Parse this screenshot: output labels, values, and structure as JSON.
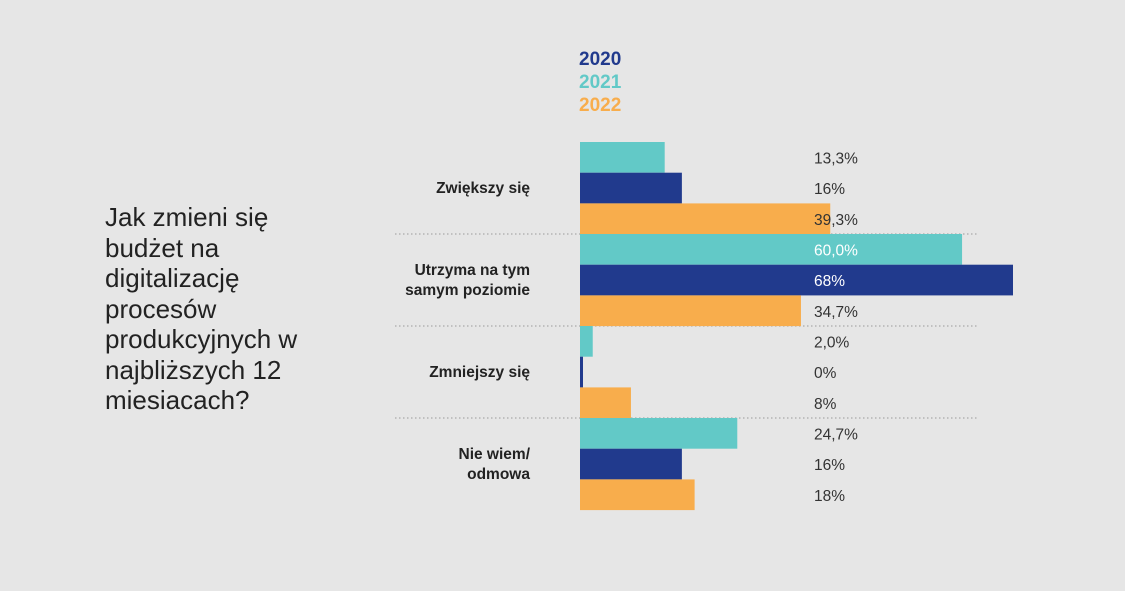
{
  "chart_data": {
    "type": "bar",
    "orientation": "horizontal",
    "title": "Jak zmieni się budżet na digitalizację procesów produkcyjnych w najbliższych 12 miesiacach?",
    "legend_placement": "top",
    "legend": [
      {
        "name": "2020",
        "color": "#213a8d"
      },
      {
        "name": "2021",
        "color": "#62c9c7"
      },
      {
        "name": "2022",
        "color": "#f8ad4c"
      }
    ],
    "categories": [
      {
        "label": [
          "Zwiększy się"
        ]
      },
      {
        "label": [
          "Utrzyma na tym",
          "samym poziomie"
        ]
      },
      {
        "label": [
          "Zmniejszy się"
        ]
      },
      {
        "label": [
          "Nie wiem/",
          "odmowa"
        ]
      }
    ],
    "bar_order": [
      "2021",
      "2020",
      "2022"
    ],
    "series": [
      {
        "name": "2020",
        "color": "#213a8d",
        "values": [
          16,
          68,
          0,
          16
        ],
        "labels": [
          "16%",
          "68%",
          "0%",
          "16%"
        ]
      },
      {
        "name": "2021",
        "color": "#62c9c7",
        "values": [
          13.3,
          60.0,
          2.0,
          24.7
        ],
        "labels": [
          "13,3%",
          "60,0%",
          "2,0%",
          "24,7%"
        ]
      },
      {
        "name": "2022",
        "color": "#f8ad4c",
        "values": [
          39.3,
          34.7,
          8,
          18
        ],
        "labels": [
          "39,3%",
          "34,7%",
          "8%",
          "18%"
        ]
      }
    ],
    "xlim": [
      0,
      68
    ],
    "grid": false
  }
}
